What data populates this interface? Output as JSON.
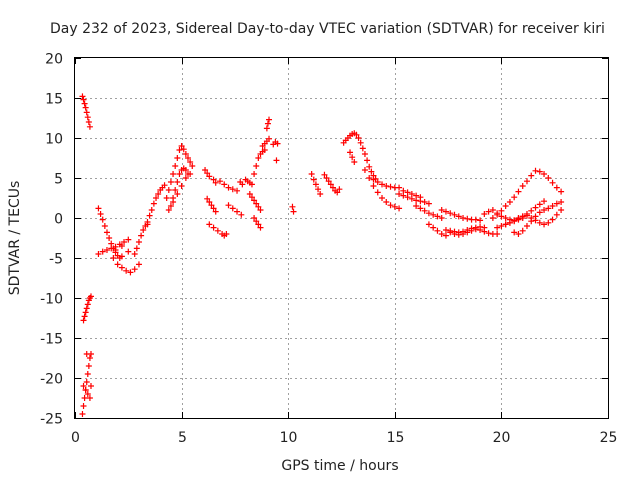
{
  "chart_data": {
    "type": "scatter",
    "title": "Day 232 of 2023, Sidereal Day-to-day VTEC variation (SDTVAR) for receiver kiri",
    "xlabel": "GPS time / hours",
    "ylabel": "SDTVAR / TECUs",
    "xlim": [
      0,
      25
    ],
    "ylim": [
      -25,
      20
    ],
    "x_ticks": [
      0,
      5,
      10,
      15,
      20,
      25
    ],
    "y_ticks": [
      -25,
      -20,
      -15,
      -10,
      -5,
      0,
      5,
      10,
      15,
      20
    ],
    "grid": true,
    "marker": "+",
    "marker_color": "#ff0000",
    "series": [
      {
        "name": "kiri",
        "x": [
          0.35,
          0.4,
          0.45,
          0.5,
          0.55,
          0.6,
          0.65,
          0.7,
          0.35,
          0.4,
          0.45,
          0.5,
          0.55,
          0.6,
          0.65,
          0.7,
          0.75,
          0.4,
          0.5,
          0.6,
          0.7,
          0.75,
          0.55,
          0.4,
          0.45,
          0.5,
          0.55,
          0.6,
          0.65,
          0.7,
          0.75,
          1.1,
          1.2,
          1.3,
          1.4,
          1.5,
          1.6,
          1.7,
          1.8,
          1.9,
          2.0,
          2.1,
          2.2,
          1.1,
          1.3,
          1.5,
          1.7,
          1.9,
          2.1,
          2.3,
          2.5,
          2.0,
          2.2,
          2.4,
          2.6,
          2.8,
          3.0,
          2.8,
          2.9,
          3.0,
          3.1,
          3.2,
          3.3,
          3.4,
          3.4,
          3.5,
          3.6,
          3.7,
          3.8,
          3.9,
          4.0,
          4.1,
          4.2,
          4.3,
          4.4,
          4.5,
          4.6,
          4.7,
          4.8,
          4.9,
          5.0,
          5.1,
          5.2,
          5.3,
          5.4,
          5.5,
          4.5,
          4.6,
          4.7,
          4.8,
          4.9,
          5.0,
          5.1,
          5.2,
          5.3,
          4.4,
          4.6,
          4.8,
          5.0,
          5.2,
          5.4,
          6.1,
          6.2,
          6.3,
          6.5,
          6.6,
          6.2,
          6.3,
          6.4,
          6.5,
          6.6,
          6.3,
          6.5,
          6.7,
          6.9,
          7.0,
          7.1,
          6.8,
          7.0,
          7.2,
          7.4,
          7.6,
          7.2,
          7.4,
          7.6,
          7.8,
          8.0,
          8.1,
          8.2,
          8.3,
          8.4,
          8.5,
          8.6,
          8.7,
          8.8,
          8.9,
          8.2,
          8.3,
          8.4,
          8.5,
          8.6,
          8.7,
          8.4,
          8.5,
          8.6,
          8.7,
          8.8,
          8.9,
          9.0,
          9.1,
          9.0,
          9.05,
          9.1,
          9.3,
          9.4,
          9.5,
          9.45,
          7.75,
          7.85,
          10.2,
          10.25,
          11.1,
          11.2,
          11.3,
          11.4,
          11.5,
          11.7,
          11.8,
          11.9,
          12.0,
          12.1,
          12.2,
          12.3,
          12.4,
          12.6,
          12.7,
          12.8,
          12.9,
          13.0,
          13.1,
          13.2,
          13.3,
          13.4,
          13.5,
          13.6,
          13.7,
          13.8,
          13.9,
          14.0,
          14.1,
          12.9,
          13.0,
          13.1,
          13.6,
          13.8,
          14.0,
          14.2,
          14.4,
          14.6,
          14.8,
          15.0,
          15.2,
          14.0,
          14.2,
          14.4,
          14.6,
          14.8,
          15.0,
          15.2,
          15.2,
          15.4,
          15.6,
          15.8,
          16.0,
          16.2,
          16.4,
          16.6,
          15.4,
          15.6,
          15.8,
          16.0,
          16.2,
          16.0,
          16.2,
          16.4,
          16.6,
          16.8,
          17.0,
          17.2,
          16.6,
          16.8,
          17.0,
          17.2,
          17.4,
          17.2,
          17.4,
          17.6,
          17.8,
          18.0,
          18.2,
          18.4,
          18.6,
          18.8,
          19.0,
          17.4,
          17.6,
          17.8,
          18.0,
          18.2,
          18.4,
          18.6,
          18.8,
          19.0,
          19.2,
          17.6,
          17.8,
          18.0,
          18.2,
          18.4,
          18.6,
          18.8,
          19.0,
          19.2,
          19.4,
          19.6,
          19.8,
          19.2,
          19.4,
          19.6,
          19.8,
          20.0,
          20.2,
          20.4,
          20.6,
          20.8,
          21.0,
          19.6,
          19.8,
          20.0,
          20.2,
          20.4,
          20.6,
          20.8,
          21.0,
          21.2,
          21.4,
          21.6,
          21.8,
          22.0,
          22.2,
          22.4,
          22.6,
          22.8,
          20.6,
          20.8,
          21.0,
          21.2,
          21.4,
          21.6,
          21.8,
          22.0,
          22.2,
          22.4,
          22.6,
          22.8,
          20.2,
          20.4,
          20.6,
          20.8,
          21.0,
          21.2,
          21.4,
          21.6,
          21.8,
          22.0,
          22.2,
          22.4,
          22.6,
          22.8,
          19.8,
          20.0,
          20.2,
          20.4,
          20.6,
          20.8,
          21.0,
          21.2,
          21.4,
          21.6,
          21.8,
          22.0,
          1.9,
          2.2,
          2.5,
          1.8
        ],
        "y": [
          15.2,
          14.8,
          14.3,
          13.8,
          13.2,
          12.6,
          12.0,
          11.4,
          -24.5,
          -23.5,
          -22.5,
          -21.5,
          -20.5,
          -19.5,
          -18.5,
          -17.5,
          -17.0,
          -21.0,
          -21.5,
          -22.0,
          -22.5,
          -21.0,
          -17.0,
          -12.8,
          -12.3,
          -11.8,
          -11.3,
          -10.8,
          -10.3,
          -10.0,
          -9.8,
          1.2,
          0.5,
          -0.2,
          -1.0,
          -1.8,
          -2.5,
          -3.2,
          -3.8,
          -4.3,
          -4.7,
          -5.0,
          -4.8,
          -4.5,
          -4.2,
          -4.0,
          -3.8,
          -3.6,
          -3.3,
          -3.0,
          -2.7,
          -5.8,
          -6.2,
          -6.6,
          -6.8,
          -6.4,
          -5.8,
          -4.5,
          -3.8,
          -3.0,
          -2.2,
          -1.5,
          -1.0,
          -0.8,
          -0.5,
          0.3,
          1.0,
          1.8,
          2.5,
          3.0,
          3.5,
          3.8,
          4.1,
          2.5,
          3.5,
          4.5,
          5.5,
          6.5,
          7.5,
          8.5,
          9.0,
          8.6,
          8.0,
          7.5,
          7.0,
          6.5,
          1.5,
          2.5,
          3.5,
          4.5,
          5.5,
          6.0,
          6.2,
          6.0,
          5.5,
          1.0,
          2.0,
          3.0,
          4.0,
          5.0,
          5.5,
          6.0,
          5.6,
          5.2,
          4.8,
          4.4,
          2.4,
          2.0,
          1.6,
          1.2,
          0.8,
          -0.8,
          -1.2,
          -1.6,
          -2.0,
          -2.2,
          -2.0,
          4.6,
          4.2,
          3.8,
          3.6,
          3.4,
          1.6,
          1.2,
          0.8,
          0.4,
          4.8,
          4.6,
          4.4,
          4.2,
          5.5,
          6.5,
          7.5,
          8.0,
          8.3,
          8.5,
          3.0,
          2.6,
          2.2,
          1.8,
          1.4,
          1.0,
          0.0,
          -0.4,
          -0.8,
          -1.2,
          9.0,
          9.3,
          9.6,
          9.9,
          11.2,
          11.8,
          12.3,
          9.2,
          9.5,
          9.3,
          7.2,
          4.5,
          4.2,
          1.4,
          0.8,
          5.5,
          4.8,
          4.2,
          3.6,
          3.0,
          5.4,
          5.0,
          4.6,
          4.2,
          3.8,
          3.4,
          3.2,
          3.6,
          9.4,
          9.7,
          10.0,
          10.3,
          10.5,
          10.6,
          10.4,
          10.0,
          9.4,
          8.7,
          8.0,
          7.2,
          6.4,
          5.8,
          5.3,
          4.9,
          8.2,
          7.6,
          7.0,
          6.0,
          5.0,
          4.0,
          3.2,
          2.5,
          2.0,
          1.6,
          1.4,
          1.2,
          4.8,
          4.5,
          4.2,
          4.0,
          3.9,
          3.8,
          3.8,
          3.0,
          2.8,
          2.6,
          2.4,
          2.2,
          2.1,
          2.0,
          1.8,
          3.4,
          3.2,
          3.0,
          2.8,
          2.6,
          1.5,
          1.2,
          0.9,
          0.6,
          0.4,
          0.2,
          0.0,
          -0.8,
          -1.2,
          -1.6,
          -2.0,
          -2.2,
          1.0,
          0.8,
          0.6,
          0.4,
          0.2,
          0.0,
          -0.1,
          -0.2,
          -0.2,
          -0.3,
          -1.5,
          -1.6,
          -1.7,
          -1.8,
          -1.7,
          -1.5,
          -1.3,
          -1.2,
          -1.1,
          -1.2,
          -1.8,
          -2.0,
          -2.1,
          -2.0,
          -1.8,
          -1.6,
          -1.4,
          -1.5,
          -1.7,
          -1.9,
          -2.0,
          -2.0,
          0.5,
          0.8,
          1.0,
          0.6,
          0.2,
          0.0,
          -0.2,
          -0.3,
          0.0,
          0.2,
          0.0,
          0.4,
          0.9,
          1.5,
          2.0,
          2.6,
          3.3,
          4.0,
          4.6,
          5.3,
          5.9,
          5.8,
          5.5,
          5.0,
          4.4,
          3.8,
          3.3,
          -1.8,
          -2.0,
          -1.6,
          -1.0,
          -0.4,
          0.2,
          0.7,
          1.0,
          1.2,
          1.5,
          1.8,
          2.0,
          -0.8,
          -0.6,
          -0.4,
          -0.2,
          0.0,
          0.3,
          0.0,
          -0.3,
          -0.6,
          -0.8,
          -0.6,
          -0.2,
          0.4,
          1.0,
          -1.2,
          -1.0,
          -0.8,
          -0.6,
          -0.3,
          -0.1,
          0.2,
          0.5,
          0.9,
          1.3,
          1.7,
          2.1,
          -4.0,
          -3.5,
          -4.2,
          -5.0
        ]
      }
    ]
  }
}
